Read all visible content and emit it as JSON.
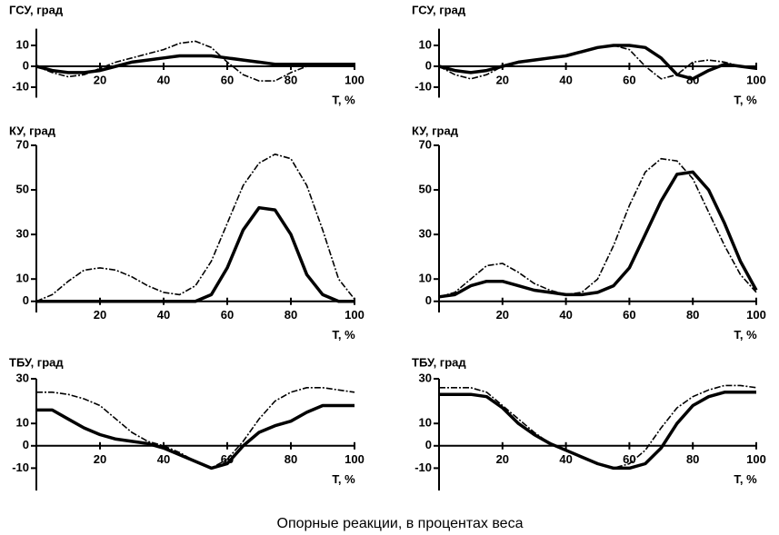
{
  "caption": "Опорные реакции, в процентах веса",
  "chart_data": [
    {
      "type": "line",
      "title": "ГСУ, град",
      "xlabel": "T, %",
      "x": [
        0,
        5,
        10,
        15,
        20,
        25,
        30,
        35,
        40,
        45,
        50,
        55,
        60,
        65,
        70,
        75,
        80,
        85,
        90,
        95,
        100
      ],
      "series": [
        {
          "color": "#000000",
          "style": "dashed",
          "values": [
            0,
            -3,
            -5,
            -4,
            -1,
            2,
            4,
            6,
            8,
            11,
            12,
            9,
            2,
            -4,
            -7,
            -7,
            -3,
            0,
            1,
            1,
            1
          ]
        },
        {
          "color": "#000000",
          "style": "solid",
          "values": [
            0,
            -2,
            -3,
            -3,
            -2,
            0,
            2,
            3,
            4,
            5,
            5,
            5,
            4,
            3,
            2,
            1,
            1,
            1,
            1,
            1,
            1
          ]
        }
      ],
      "xlim": [
        0,
        100
      ],
      "xticks": [
        20,
        40,
        60,
        80,
        100
      ],
      "ylim": [
        -15,
        18
      ],
      "yticks": [
        10,
        0,
        -10
      ]
    },
    {
      "type": "line",
      "title": "ГСУ, град",
      "xlabel": "T, %",
      "x": [
        0,
        5,
        10,
        15,
        20,
        25,
        30,
        35,
        40,
        45,
        50,
        55,
        60,
        65,
        70,
        75,
        80,
        85,
        90,
        95,
        100
      ],
      "series": [
        {
          "color": "#000000",
          "style": "dashed",
          "values": [
            0,
            -4,
            -6,
            -4,
            0,
            2,
            3,
            4,
            5,
            7,
            9,
            10,
            8,
            0,
            -6,
            -4,
            2,
            3,
            2,
            0,
            0
          ]
        },
        {
          "color": "#000000",
          "style": "solid",
          "values": [
            0,
            -2,
            -3,
            -2,
            0,
            2,
            3,
            4,
            5,
            7,
            9,
            10,
            10,
            9,
            4,
            -4,
            -6,
            -2,
            1,
            0,
            -1
          ]
        }
      ],
      "xlim": [
        0,
        100
      ],
      "xticks": [
        20,
        40,
        60,
        80,
        100
      ],
      "ylim": [
        -15,
        18
      ],
      "yticks": [
        10,
        0,
        -10
      ]
    },
    {
      "type": "line",
      "title": "КУ, град",
      "xlabel": "T, %",
      "x": [
        0,
        5,
        10,
        15,
        20,
        25,
        30,
        35,
        40,
        45,
        50,
        55,
        60,
        65,
        70,
        75,
        80,
        85,
        90,
        95,
        100
      ],
      "series": [
        {
          "color": "#000000",
          "style": "dashed",
          "values": [
            0,
            3,
            9,
            14,
            15,
            14,
            11,
            7,
            4,
            3,
            7,
            18,
            35,
            52,
            62,
            66,
            64,
            52,
            32,
            10,
            1
          ]
        },
        {
          "color": "#000000",
          "style": "solid",
          "values": [
            0,
            0,
            0,
            0,
            0,
            0,
            0,
            0,
            0,
            0,
            0,
            3,
            15,
            32,
            42,
            41,
            30,
            12,
            3,
            0,
            0
          ]
        }
      ],
      "xlim": [
        0,
        100
      ],
      "xticks": [
        20,
        40,
        60,
        80,
        100
      ],
      "ylim": [
        -5,
        70
      ],
      "yticks": [
        70,
        50,
        30,
        10,
        0
      ]
    },
    {
      "type": "line",
      "title": "КУ, град",
      "xlabel": "T, %",
      "x": [
        0,
        5,
        10,
        15,
        20,
        25,
        30,
        35,
        40,
        45,
        50,
        55,
        60,
        65,
        70,
        75,
        80,
        85,
        90,
        95,
        100
      ],
      "series": [
        {
          "color": "#000000",
          "style": "dashed",
          "values": [
            2,
            4,
            10,
            16,
            17,
            13,
            8,
            5,
            3,
            4,
            10,
            25,
            43,
            58,
            64,
            63,
            55,
            40,
            25,
            12,
            4
          ]
        },
        {
          "color": "#000000",
          "style": "solid",
          "values": [
            2,
            3,
            7,
            9,
            9,
            7,
            5,
            4,
            3,
            3,
            4,
            7,
            15,
            30,
            45,
            57,
            58,
            50,
            35,
            18,
            5
          ]
        }
      ],
      "xlim": [
        0,
        100
      ],
      "xticks": [
        20,
        40,
        60,
        80,
        100
      ],
      "ylim": [
        -5,
        70
      ],
      "yticks": [
        70,
        50,
        30,
        10,
        0
      ]
    },
    {
      "type": "line",
      "title": "ТБУ, град",
      "xlabel": "T, %",
      "x": [
        0,
        5,
        10,
        15,
        20,
        25,
        30,
        35,
        40,
        45,
        50,
        55,
        60,
        65,
        70,
        75,
        80,
        85,
        90,
        95,
        100
      ],
      "series": [
        {
          "color": "#000000",
          "style": "dashed",
          "values": [
            24,
            24,
            23,
            21,
            18,
            12,
            6,
            2,
            0,
            -3,
            -7,
            -10,
            -6,
            2,
            12,
            20,
            24,
            26,
            26,
            25,
            24
          ]
        },
        {
          "color": "#000000",
          "style": "solid",
          "values": [
            16,
            16,
            12,
            8,
            5,
            3,
            2,
            1,
            -1,
            -4,
            -7,
            -10,
            -8,
            0,
            6,
            9,
            11,
            15,
            18,
            18,
            18
          ]
        }
      ],
      "xlim": [
        0,
        100
      ],
      "xticks": [
        20,
        40,
        60,
        80,
        100
      ],
      "ylim": [
        -20,
        30
      ],
      "yticks": [
        30,
        10,
        0,
        -10
      ]
    },
    {
      "type": "line",
      "title": "ТБУ, град",
      "xlabel": "T, %",
      "x": [
        0,
        5,
        10,
        15,
        20,
        25,
        30,
        35,
        40,
        45,
        50,
        55,
        60,
        65,
        70,
        75,
        80,
        85,
        90,
        95,
        100
      ],
      "series": [
        {
          "color": "#000000",
          "style": "dashed",
          "values": [
            26,
            26,
            26,
            24,
            18,
            12,
            6,
            1,
            -2,
            -5,
            -8,
            -10,
            -8,
            -2,
            8,
            17,
            22,
            25,
            27,
            27,
            26
          ]
        },
        {
          "color": "#000000",
          "style": "solid",
          "values": [
            23,
            23,
            23,
            22,
            17,
            10,
            5,
            1,
            -2,
            -5,
            -8,
            -10,
            -10,
            -8,
            -1,
            10,
            18,
            22,
            24,
            24,
            24
          ]
        }
      ],
      "xlim": [
        0,
        100
      ],
      "xticks": [
        20,
        40,
        60,
        80,
        100
      ],
      "ylim": [
        -20,
        30
      ],
      "yticks": [
        30,
        10,
        0,
        -10
      ]
    }
  ]
}
